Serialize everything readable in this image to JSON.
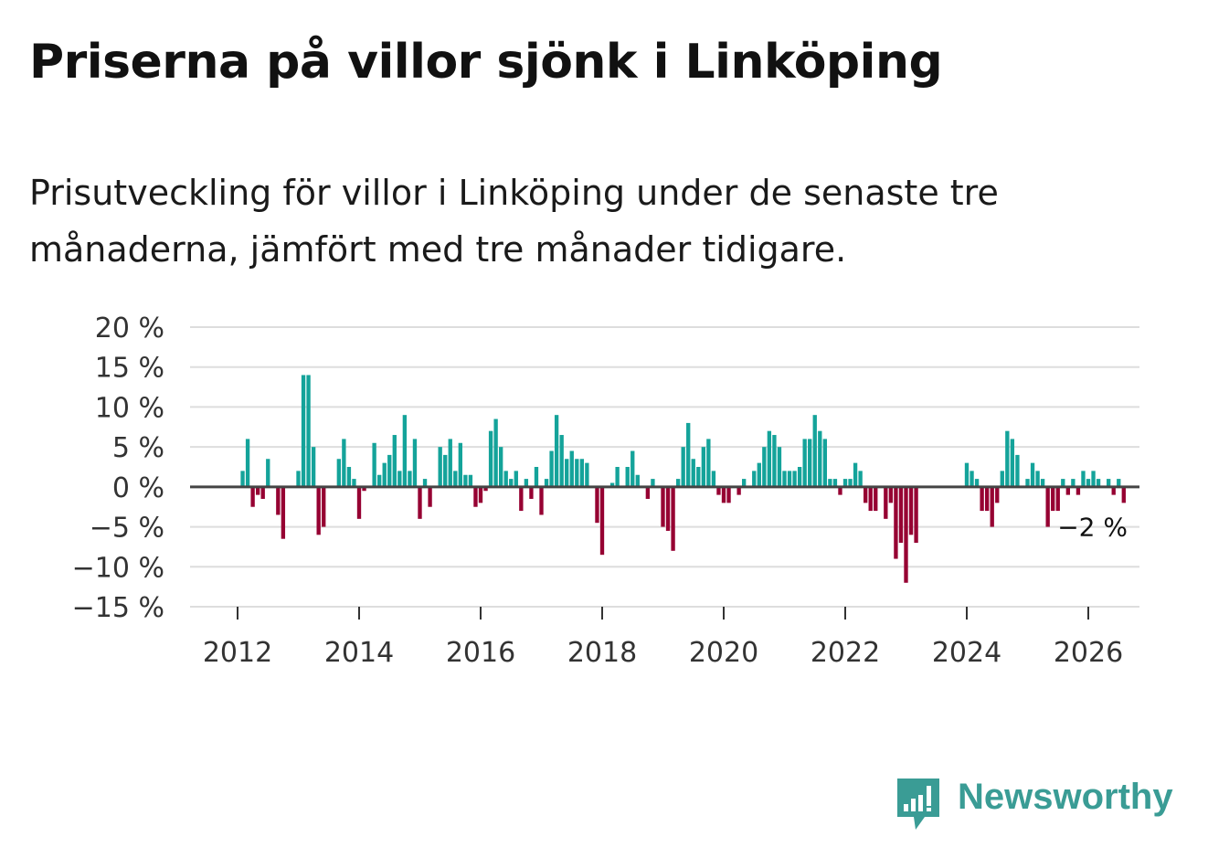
{
  "title": "Priserna på villor sjönk i Linköping",
  "subtitle": "Prisutveckling för villor i Linköping under de senaste tre månaderna, jämfört med tre månader tidigare.",
  "brand": {
    "name": "Newsworthy",
    "color": "#3a9c95"
  },
  "colors": {
    "positive": "#14a39a",
    "negative": "#960032",
    "zero_line": "#444444",
    "grid": "#dddddd"
  },
  "chart_data": {
    "type": "bar",
    "title": "Priserna på villor sjönk i Linköping",
    "xlabel": "",
    "ylabel": "",
    "ylim": [
      -15,
      20
    ],
    "y_ticks": [
      20,
      15,
      10,
      5,
      0,
      -5,
      -10,
      -15
    ],
    "y_tick_labels": [
      "20 %",
      "15 %",
      "10 %",
      "5 %",
      "0 %",
      "−5 %",
      "−10 %",
      "−15 %"
    ],
    "x_ticks": [
      2012,
      2014,
      2016,
      2018,
      2020,
      2022,
      2024,
      2026
    ],
    "x_tick_labels": [
      "2012",
      "2014",
      "2016",
      "2018",
      "2020",
      "2022",
      "2024",
      "2026"
    ],
    "start": {
      "year": 2011,
      "month": 9
    },
    "values": [
      0,
      0,
      0,
      0,
      0,
      2,
      6,
      -2.5,
      -1,
      -1.5,
      3.5,
      0,
      -3.5,
      -6.5,
      0,
      0,
      2,
      14,
      14,
      5,
      -6,
      -5,
      0,
      0,
      3.5,
      6,
      2.5,
      1,
      -4,
      -0.5,
      0,
      5.5,
      1.5,
      3,
      4,
      6.5,
      2,
      9,
      2,
      6,
      -4,
      1,
      -2.5,
      0,
      5,
      4,
      6,
      2,
      5.5,
      1.5,
      1.5,
      -2.5,
      -2,
      -0.5,
      7,
      8.5,
      5,
      2,
      1,
      2,
      -3,
      1,
      -1.5,
      2.5,
      -3.5,
      1,
      4.5,
      9,
      6.5,
      3.5,
      4.5,
      3.5,
      3.5,
      3,
      0,
      -4.5,
      -8.5,
      0,
      0.5,
      2.5,
      0,
      2.5,
      4.5,
      1.5,
      0,
      -1.5,
      1,
      0,
      -5,
      -5.5,
      -8,
      1,
      5,
      8,
      3.5,
      2.5,
      5,
      6,
      2,
      -1,
      -2,
      -2,
      0,
      -1,
      1,
      0,
      2,
      3,
      5,
      7,
      6.5,
      5,
      2,
      2,
      2,
      2.5,
      6,
      6,
      9,
      7,
      6,
      1,
      1,
      -1,
      1,
      1,
      3,
      2,
      -2,
      -3,
      -3,
      0,
      -4,
      -2,
      -9,
      -7,
      -12,
      -6,
      -7,
      0,
      0,
      0,
      0,
      0,
      0,
      0,
      0,
      0,
      3,
      2,
      1,
      -3,
      -3,
      -5,
      -2,
      2,
      7,
      6,
      4,
      0,
      1,
      3,
      2,
      1,
      -5,
      -3,
      -3,
      1,
      -1,
      1,
      -1,
      2,
      1,
      2,
      1,
      0,
      1,
      -1,
      1,
      -2
    ],
    "last_value_label": "−2 %"
  }
}
